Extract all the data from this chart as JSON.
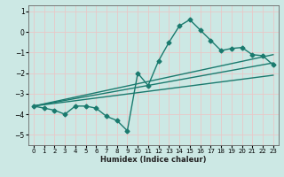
{
  "xlabel": "Humidex (Indice chaleur)",
  "ylabel": "",
  "bg_color": "#cce8e4",
  "grid_color": "#e8c8c8",
  "line_color": "#1a7a6e",
  "xlim": [
    -0.5,
    23.5
  ],
  "ylim": [
    -5.5,
    1.3
  ],
  "xticks": [
    0,
    1,
    2,
    3,
    4,
    5,
    6,
    7,
    8,
    9,
    10,
    11,
    12,
    13,
    14,
    15,
    16,
    17,
    18,
    19,
    20,
    21,
    22,
    23
  ],
  "yticks": [
    -5,
    -4,
    -3,
    -2,
    -1,
    0,
    1
  ],
  "main_x": [
    0,
    1,
    2,
    3,
    4,
    5,
    6,
    7,
    8,
    9,
    10,
    11,
    12,
    13,
    14,
    15,
    16,
    17,
    18,
    19,
    20,
    21,
    22,
    23
  ],
  "main_y": [
    -3.6,
    -3.7,
    -3.8,
    -4.0,
    -3.6,
    -3.6,
    -3.7,
    -4.1,
    -4.3,
    -4.8,
    -2.0,
    -2.6,
    -1.4,
    -0.5,
    0.3,
    0.6,
    0.1,
    -0.4,
    -0.9,
    -0.8,
    -0.75,
    -1.1,
    -1.15,
    -1.6
  ],
  "line1_x": [
    0,
    23
  ],
  "line1_y": [
    -3.6,
    -1.5
  ],
  "line2_x": [
    0,
    23
  ],
  "line2_y": [
    -3.6,
    -1.1
  ],
  "line3_x": [
    0,
    23
  ],
  "line3_y": [
    -3.6,
    -2.1
  ],
  "marker_size": 2.5,
  "line_width": 1.0,
  "xlabel_fontsize": 6.0,
  "tick_fontsize": 5.0
}
